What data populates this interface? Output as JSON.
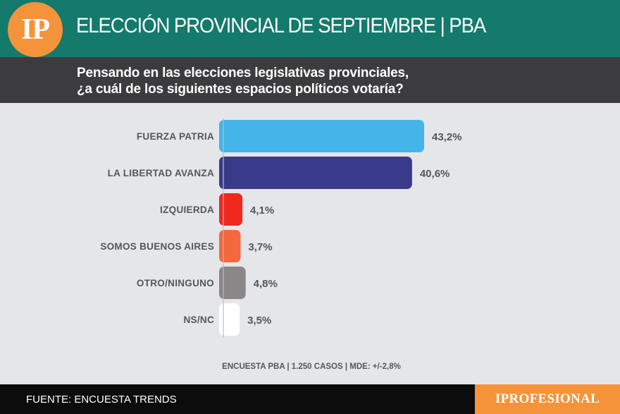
{
  "header": {
    "logo_text": "IP",
    "title": "ELECCIÓN PROVINCIAL DE SEPTIEMBRE | PBA",
    "background_color": "#137a6c",
    "logo_color": "#f5933b"
  },
  "question": {
    "line1": "Pensando en las elecciones legislativas provinciales,",
    "line2": "¿a cuál de los siguientes espacios políticos votaría?"
  },
  "chart_data": {
    "type": "bar",
    "orientation": "horizontal",
    "title": "Pensando en las elecciones legislativas provinciales, ¿a cuál de los siguientes espacios políticos votaría?",
    "categories": [
      "FUERZA PATRIA",
      "LA LIBERTAD AVANZA",
      "IZQUIERDA",
      "SOMOS BUENOS AIRES",
      "OTRO/NINGUNO",
      "NS/NC"
    ],
    "values": [
      43.2,
      40.6,
      4.1,
      3.7,
      4.8,
      3.5
    ],
    "value_labels": [
      "43,2%",
      "40,6%",
      "4,1%",
      "3,7%",
      "4,8%",
      "3,5%"
    ],
    "colors": [
      "#45b4e8",
      "#3a3a8a",
      "#f0281e",
      "#f5673f",
      "#8a8788",
      "#ffffff"
    ],
    "xlim": [
      0,
      50
    ],
    "unit": "%",
    "grid": false
  },
  "survey_note": "ENCUESTA PBA | 1.250 CASOS | MDE: +/-2,8%",
  "footer": {
    "source": "FUENTE: ENCUESTA TRENDS",
    "brand": "IPROFESIONAL",
    "brand_color": "#f5933b"
  }
}
